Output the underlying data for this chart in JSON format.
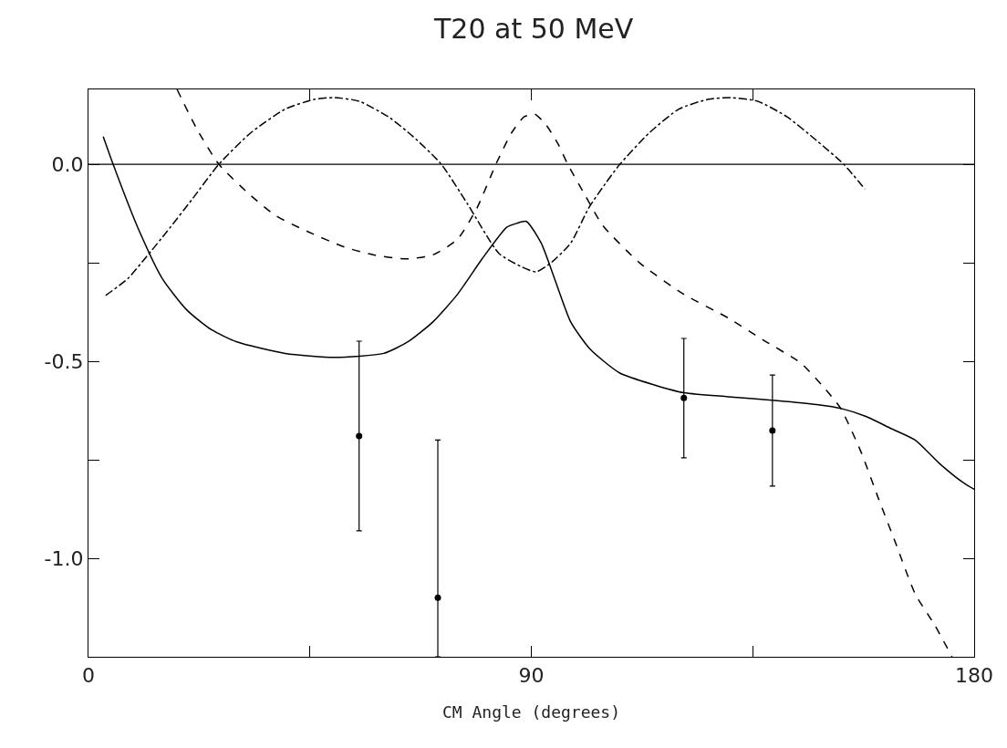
{
  "chart_data": {
    "type": "line",
    "title": "T20 at 50 MeV",
    "xlabel": "CM Angle (degrees)",
    "xlim": [
      0,
      180
    ],
    "xticks": [
      0,
      {
        "value": 45,
        "label": null
      },
      90,
      {
        "value": 135,
        "label": null
      },
      180
    ],
    "ylim": [
      -1.25,
      0.19
    ],
    "yticks": [
      {
        "value": 0,
        "label": "0.0"
      },
      {
        "value": -0.25,
        "label": null
      },
      {
        "value": -0.5,
        "label": "-0.5"
      },
      {
        "value": -0.75,
        "label": null
      },
      {
        "value": -1.0,
        "label": "-1.0"
      }
    ],
    "legend": false,
    "marker": "none",
    "ref_lines": [
      {
        "axis": "y",
        "value": 0,
        "color": "#000000",
        "line_style": "solid"
      }
    ],
    "series": [
      {
        "color": "#000000",
        "line_style": "solid",
        "x": [
          3,
          5,
          10,
          15,
          20,
          25,
          30,
          40,
          50,
          60,
          65,
          70,
          75,
          80,
          85,
          87,
          89,
          92,
          95,
          98,
          102,
          108,
          115,
          121,
          130,
          140,
          148,
          153,
          158,
          163,
          168,
          173,
          178,
          180
        ],
        "values": [
          0.07,
          0.0,
          -0.16,
          -0.29,
          -0.37,
          -0.42,
          -0.45,
          -0.48,
          -0.49,
          -0.48,
          -0.45,
          -0.4,
          -0.33,
          -0.24,
          -0.16,
          -0.15,
          -0.145,
          -0.2,
          -0.3,
          -0.4,
          -0.47,
          -0.53,
          -0.56,
          -0.58,
          -0.59,
          -0.6,
          -0.61,
          -0.62,
          -0.64,
          -0.67,
          -0.7,
          -0.76,
          -0.81,
          -0.825
        ]
      },
      {
        "color": "#000000",
        "line_style": "dashed",
        "x": [
          18,
          22,
          26.5,
          32.7,
          38,
          44.4,
          52,
          58,
          64.6,
          70,
          75,
          79,
          82.8,
          86,
          88.5,
          90.7,
          93,
          95.5,
          97.4,
          101,
          104.5,
          112,
          121,
          130,
          137,
          144.8,
          149,
          152.8,
          157,
          160.6,
          164,
          168,
          172,
          175.5
        ],
        "values": [
          0.19,
          0.09,
          0.0,
          -0.076,
          -0.13,
          -0.17,
          -0.21,
          -0.23,
          -0.24,
          -0.23,
          -0.19,
          -0.11,
          0.0,
          0.08,
          0.12,
          0.127,
          0.1,
          0.05,
          0.0,
          -0.08,
          -0.155,
          -0.25,
          -0.33,
          -0.39,
          -0.445,
          -0.505,
          -0.56,
          -0.618,
          -0.73,
          -0.85,
          -0.96,
          -1.09,
          -1.17,
          -1.25
        ]
      },
      {
        "color": "#000000",
        "line_style": "dashdot",
        "x": [
          3.5,
          8,
          11.7,
          16,
          21,
          26.5,
          33,
          40,
          46,
          50,
          55,
          61,
          66,
          71.7,
          77,
          83.4,
          88,
          91,
          94,
          98,
          101.7,
          105,
          108,
          114,
          120,
          126,
          130.7,
          136,
          142,
          148,
          153.5,
          157.8
        ],
        "values": [
          -0.333,
          -0.29,
          -0.236,
          -0.17,
          -0.09,
          0.0,
          0.08,
          0.14,
          0.165,
          0.169,
          0.16,
          0.12,
          0.07,
          0.0,
          -0.1,
          -0.226,
          -0.26,
          -0.273,
          -0.25,
          -0.2,
          -0.11,
          -0.05,
          0.0,
          0.08,
          0.14,
          0.165,
          0.169,
          0.16,
          0.12,
          0.06,
          0.0,
          -0.063
        ]
      },
      {
        "type": "scatter",
        "color": "#000000",
        "marker": "circle",
        "x": [
          55,
          71,
          121,
          139
        ],
        "values": [
          -0.69,
          -1.1,
          -0.593,
          -0.676
        ],
        "errors": [
          [
            -0.93,
            -0.449
          ],
          [
            -1.25,
            -0.7
          ],
          [
            -0.745,
            -0.442
          ],
          [
            -0.817,
            -0.535
          ]
        ]
      }
    ]
  }
}
